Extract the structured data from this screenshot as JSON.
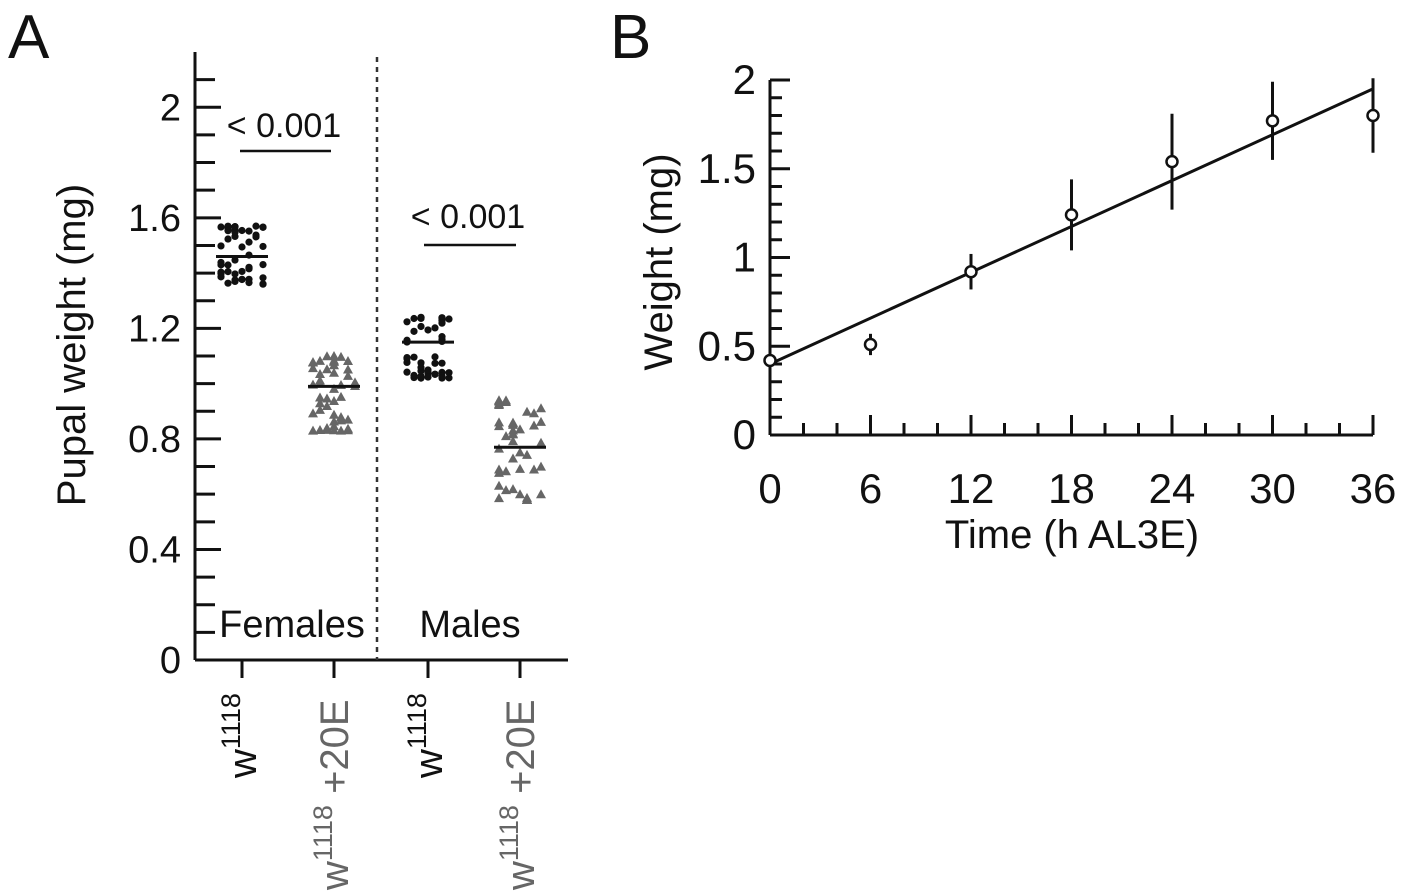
{
  "chart_data": [
    {
      "panel": "A",
      "type": "scatter",
      "ylabel": "Pupal weight (mg)",
      "ylim": [
        0,
        2.2
      ],
      "yticks": [
        0,
        0.4,
        0.8,
        1.2,
        1.6,
        2
      ],
      "yticklabels": [
        "0",
        "0.4",
        "0.8",
        "1.2",
        "1.6",
        "2"
      ],
      "group_labels": [
        "Females",
        "Males"
      ],
      "categories": [
        {
          "base": "w",
          "sup": "1118",
          "suffix": "",
          "color": "#111111",
          "marker": "circle",
          "group": "Females",
          "mean": 1.46,
          "min": 1.36,
          "max": 1.57
        },
        {
          "base": "w",
          "sup": "1118",
          "suffix": " +20E",
          "color": "#666666",
          "marker": "triangle",
          "group": "Females",
          "mean": 0.99,
          "min": 0.83,
          "max": 1.1
        },
        {
          "base": "w",
          "sup": "1118",
          "suffix": "",
          "color": "#111111",
          "marker": "circle",
          "group": "Males",
          "mean": 1.15,
          "min": 1.02,
          "max": 1.24
        },
        {
          "base": "w",
          "sup": "1118",
          "suffix": " +20E",
          "color": "#666666",
          "marker": "triangle",
          "group": "Males",
          "mean": 0.77,
          "min": 0.58,
          "max": 0.94
        }
      ],
      "comparisons": [
        {
          "between": [
            0,
            1
          ],
          "label": "< 0.001"
        },
        {
          "between": [
            2,
            3
          ],
          "label": "< 0.001"
        }
      ],
      "grid": false
    },
    {
      "panel": "B",
      "type": "scatter",
      "xlabel": "Time (h AL3E)",
      "ylabel": "Weight (mg)",
      "xlim": [
        0,
        36
      ],
      "ylim": [
        0,
        2
      ],
      "xticks": [
        0,
        6,
        12,
        18,
        24,
        30,
        36
      ],
      "xticklabels": [
        "0",
        "6",
        "12",
        "18",
        "24",
        "30",
        "36"
      ],
      "yticks": [
        0,
        0.5,
        1,
        1.5,
        2
      ],
      "yticklabels": [
        "0",
        "0.5",
        "1",
        "1.5",
        "2"
      ],
      "points": [
        {
          "x": 0,
          "y": 0.42,
          "err": 0.02
        },
        {
          "x": 6,
          "y": 0.51,
          "err": 0.06
        },
        {
          "x": 12,
          "y": 0.92,
          "err": 0.1
        },
        {
          "x": 18,
          "y": 1.24,
          "err": 0.2
        },
        {
          "x": 24,
          "y": 1.54,
          "err": 0.27
        },
        {
          "x": 30,
          "y": 1.77,
          "err": 0.22
        },
        {
          "x": 36,
          "y": 1.8,
          "err": 0.21
        }
      ],
      "fit_line": {
        "x": [
          0,
          36
        ],
        "y": [
          0.4,
          1.95
        ]
      },
      "grid": false
    }
  ],
  "panels": {
    "a_letter": "A",
    "b_letter": "B"
  }
}
